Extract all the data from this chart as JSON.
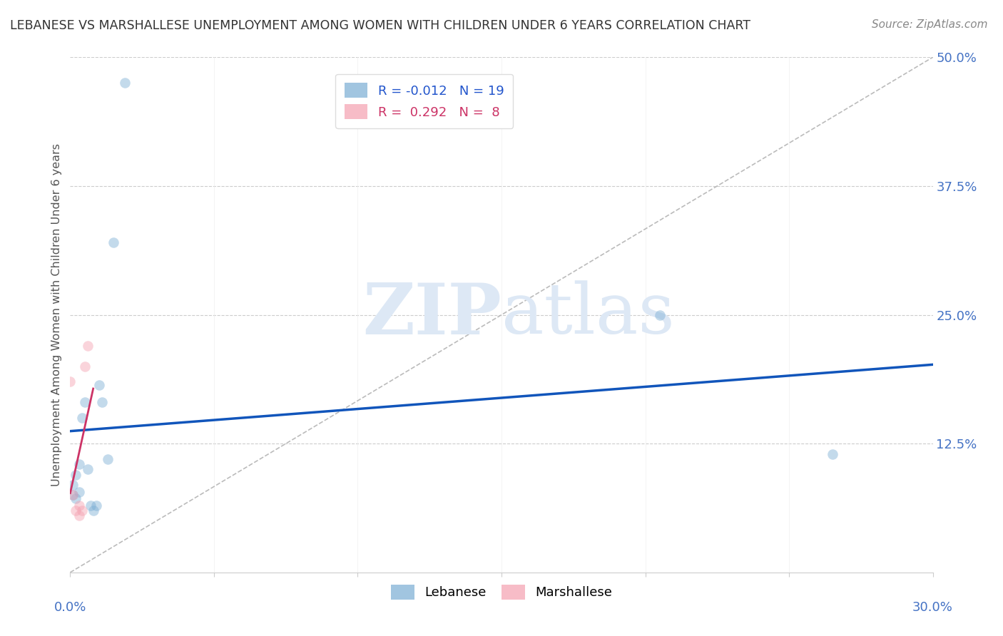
{
  "title": "LEBANESE VS MARSHALLESE UNEMPLOYMENT AMONG WOMEN WITH CHILDREN UNDER 6 YEARS CORRELATION CHART",
  "source": "Source: ZipAtlas.com",
  "ylabel": "Unemployment Among Women with Children Under 6 years",
  "xlim": [
    0.0,
    0.3
  ],
  "ylim": [
    0.0,
    0.5
  ],
  "xticks": [
    0.0,
    0.05,
    0.1,
    0.15,
    0.2,
    0.25,
    0.3
  ],
  "ytick_positions": [
    0.125,
    0.25,
    0.375,
    0.5
  ],
  "ytick_labels": [
    "12.5%",
    "25.0%",
    "37.5%",
    "50.0%"
  ],
  "lebanese_R": -0.012,
  "lebanese_N": 19,
  "marshallese_R": 0.292,
  "marshallese_N": 8,
  "lebanese_color": "#7aadd4",
  "marshallese_color": "#f4a0b0",
  "lebanese_x": [
    0.001,
    0.001,
    0.002,
    0.002,
    0.003,
    0.003,
    0.004,
    0.005,
    0.006,
    0.007,
    0.008,
    0.009,
    0.01,
    0.011,
    0.013,
    0.015,
    0.019,
    0.205,
    0.265
  ],
  "lebanese_y": [
    0.075,
    0.085,
    0.072,
    0.095,
    0.105,
    0.078,
    0.15,
    0.165,
    0.1,
    0.065,
    0.06,
    0.065,
    0.182,
    0.165,
    0.11,
    0.32,
    0.475,
    0.25,
    0.115
  ],
  "marshallese_x": [
    0.0,
    0.001,
    0.002,
    0.003,
    0.003,
    0.004,
    0.005,
    0.006
  ],
  "marshallese_y": [
    0.185,
    0.075,
    0.06,
    0.055,
    0.065,
    0.06,
    0.2,
    0.22
  ],
  "bg_color": "#ffffff",
  "grid_color": "#cccccc",
  "title_color": "#333333",
  "axis_label_color": "#555555",
  "blue_line_color": "#1155bb",
  "pink_line_color": "#cc3366",
  "diag_color": "#bbbbbb",
  "watermark_color": "#dde8f5",
  "marker_size": 110,
  "marker_alpha": 0.45,
  "legend_R_color": "#2255cc",
  "legend_tick_color": "#4472c4"
}
